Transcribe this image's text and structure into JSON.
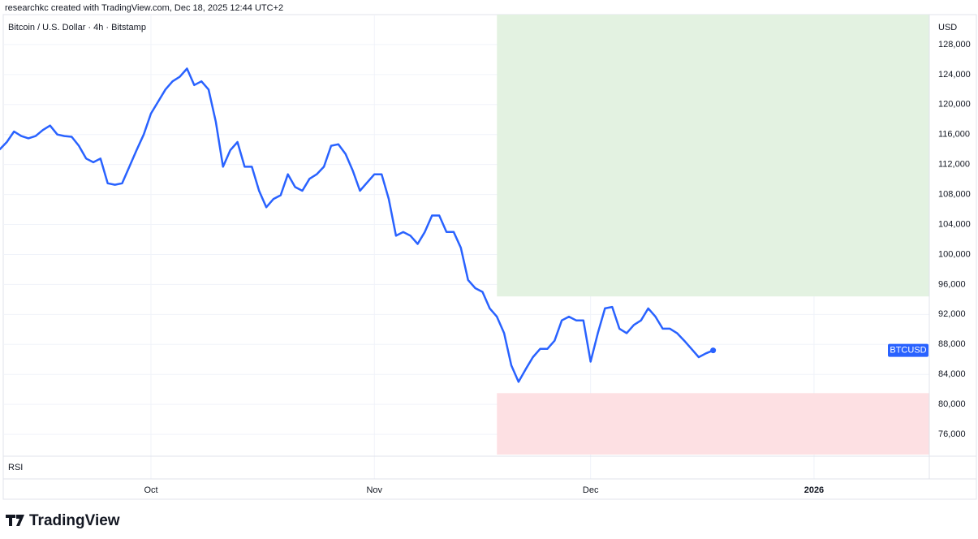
{
  "header": "researchkc created with TradingView.com, Dec 18, 2025 12:44 UTC+2",
  "logo": "TradingView",
  "chart_data": {
    "type": "line",
    "title": "Bitcoin / U.S. Dollar · 4h · Bitstamp",
    "y_axis_label": "USD",
    "pane_label": "RSI",
    "categories": [
      null,
      null,
      null,
      null,
      null,
      null,
      null,
      null,
      null,
      null,
      null,
      null,
      null,
      null,
      null,
      null,
      null,
      null,
      null,
      null,
      null,
      "Oct",
      null,
      null,
      null,
      null,
      null,
      null,
      null,
      null,
      null,
      null,
      null,
      null,
      null,
      null,
      null,
      null,
      null,
      null,
      null,
      null,
      null,
      null,
      null,
      null,
      null,
      null,
      null,
      null,
      null,
      null,
      "Nov",
      null,
      null,
      null,
      null,
      null,
      null,
      null,
      null,
      null,
      null,
      null,
      null,
      null,
      null,
      null,
      null,
      null,
      null,
      null,
      null,
      null,
      null,
      null,
      null,
      null,
      null,
      null,
      null,
      null,
      "Dec",
      null,
      null,
      null,
      null,
      null,
      null,
      null,
      null,
      null,
      null,
      null,
      null,
      null,
      null,
      null,
      null,
      null,
      null,
      null,
      null,
      null,
      null,
      null,
      null,
      null,
      null,
      null,
      null,
      null,
      null,
      "2026",
      null,
      null,
      null,
      null,
      null,
      null,
      null,
      null,
      null,
      null,
      null,
      null,
      null,
      null,
      null
    ],
    "series": [
      {
        "name": "BTCUSD",
        "color": "#2962ff",
        "values": [
          114000,
          115000,
          116400,
          115800,
          115500,
          115800,
          116600,
          117200,
          116000,
          115800,
          115700,
          114500,
          112800,
          112300,
          112800,
          109500,
          109300,
          109500,
          111700,
          113900,
          116000,
          118800,
          120400,
          122000,
          123100,
          123700,
          124800,
          122600,
          123100,
          122000,
          117700,
          111700,
          113900,
          115000,
          111700,
          111700,
          108500,
          106300,
          107400,
          107900,
          110700,
          109000,
          108500,
          110100,
          110700,
          111700,
          114500,
          114700,
          113400,
          111200,
          108500,
          109600,
          110700,
          110700,
          107400,
          102500,
          103000,
          102500,
          101400,
          103000,
          105200,
          105200,
          103000,
          103000,
          100900,
          96600,
          95500,
          95000,
          92800,
          91700,
          89500,
          85200,
          83000,
          84700,
          86300,
          87400,
          87400,
          88500,
          91200,
          91700,
          91200,
          91200,
          85700,
          89500,
          92800,
          93000,
          90100,
          89500,
          90600,
          91200,
          92800,
          91700,
          90100,
          90100,
          89500,
          88500,
          87400,
          86300,
          86800,
          87200,
          null,
          null,
          null,
          null,
          null,
          null,
          null,
          null,
          null,
          null,
          null,
          null,
          null,
          null,
          null,
          null,
          null,
          null,
          null,
          null,
          null,
          null,
          null,
          null,
          null,
          null,
          null,
          null,
          null
        ]
      }
    ],
    "zones": [
      {
        "start": 69,
        "range": [
          94400,
          132000
        ],
        "color": "#e3f2e1"
      },
      {
        "start": 69,
        "range": [
          73300,
          81500
        ],
        "color": "#fde0e3"
      }
    ],
    "ylim": [
      73300,
      132000
    ],
    "yticks": [
      {
        "value": 76000,
        "label": "76,000"
      },
      {
        "value": 80000,
        "label": "80,000"
      },
      {
        "value": 84000,
        "label": "84,000"
      },
      {
        "value": 88000,
        "label": "88,000"
      },
      {
        "value": 92000,
        "label": "92,000"
      },
      {
        "value": 96000,
        "label": "96,000"
      },
      {
        "value": 100000,
        "label": "100,000"
      },
      {
        "value": 104000,
        "label": "104,000"
      },
      {
        "value": 108000,
        "label": "108,000"
      },
      {
        "value": 112000,
        "label": "112,000"
      },
      {
        "value": 116000,
        "label": "116,000"
      },
      {
        "value": 120000,
        "label": "120,000"
      },
      {
        "value": 124000,
        "label": "124,000"
      },
      {
        "value": 128000,
        "label": "128,000"
      }
    ],
    "grid": true
  }
}
